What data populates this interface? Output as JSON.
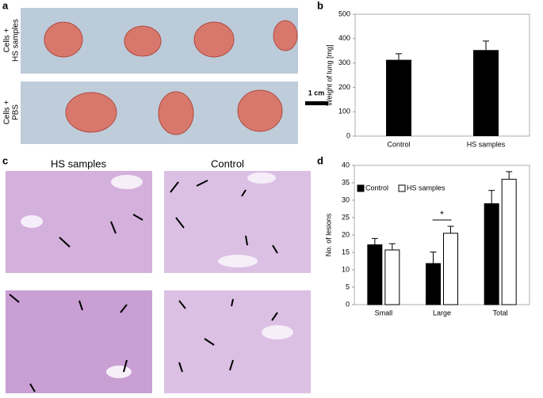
{
  "panels": {
    "a": "a",
    "b": "b",
    "c": "c",
    "d": "d"
  },
  "photo_rows": [
    {
      "line1": "Cells +",
      "line2": "HS samples"
    },
    {
      "line1": "Cells +",
      "line2": "PBS"
    }
  ],
  "scale_bar": "1 cm",
  "histology_headers": [
    "HS samples",
    "Control"
  ],
  "chart_data": [
    {
      "type": "bar",
      "y_label": "Weight of lung [mg]",
      "categories": [
        "Control",
        "HS samples"
      ],
      "values": [
        313,
        353
      ],
      "errors": [
        25,
        37
      ],
      "color": "#000000",
      "ylim": [
        0,
        500
      ],
      "yticks": [
        0,
        100,
        200,
        300,
        400,
        500
      ]
    },
    {
      "type": "grouped_bar",
      "y_label": "No. of lesions",
      "categories": [
        "Small",
        "Large",
        "Total"
      ],
      "series": [
        {
          "name": "Control",
          "color": "#000000",
          "values": [
            17.2,
            11.8,
            29
          ],
          "errors": [
            1.8,
            3.3,
            3.8
          ]
        },
        {
          "name": "HS samples",
          "color": "#ffffff",
          "values": [
            15.7,
            20.5,
            36
          ],
          "errors": [
            1.8,
            2.0,
            2.2
          ]
        }
      ],
      "ylim": [
        0,
        40
      ],
      "yticks": [
        0,
        5,
        10,
        15,
        20,
        25,
        30,
        35,
        40
      ],
      "legend": "upper-left",
      "annotation": "*"
    }
  ]
}
